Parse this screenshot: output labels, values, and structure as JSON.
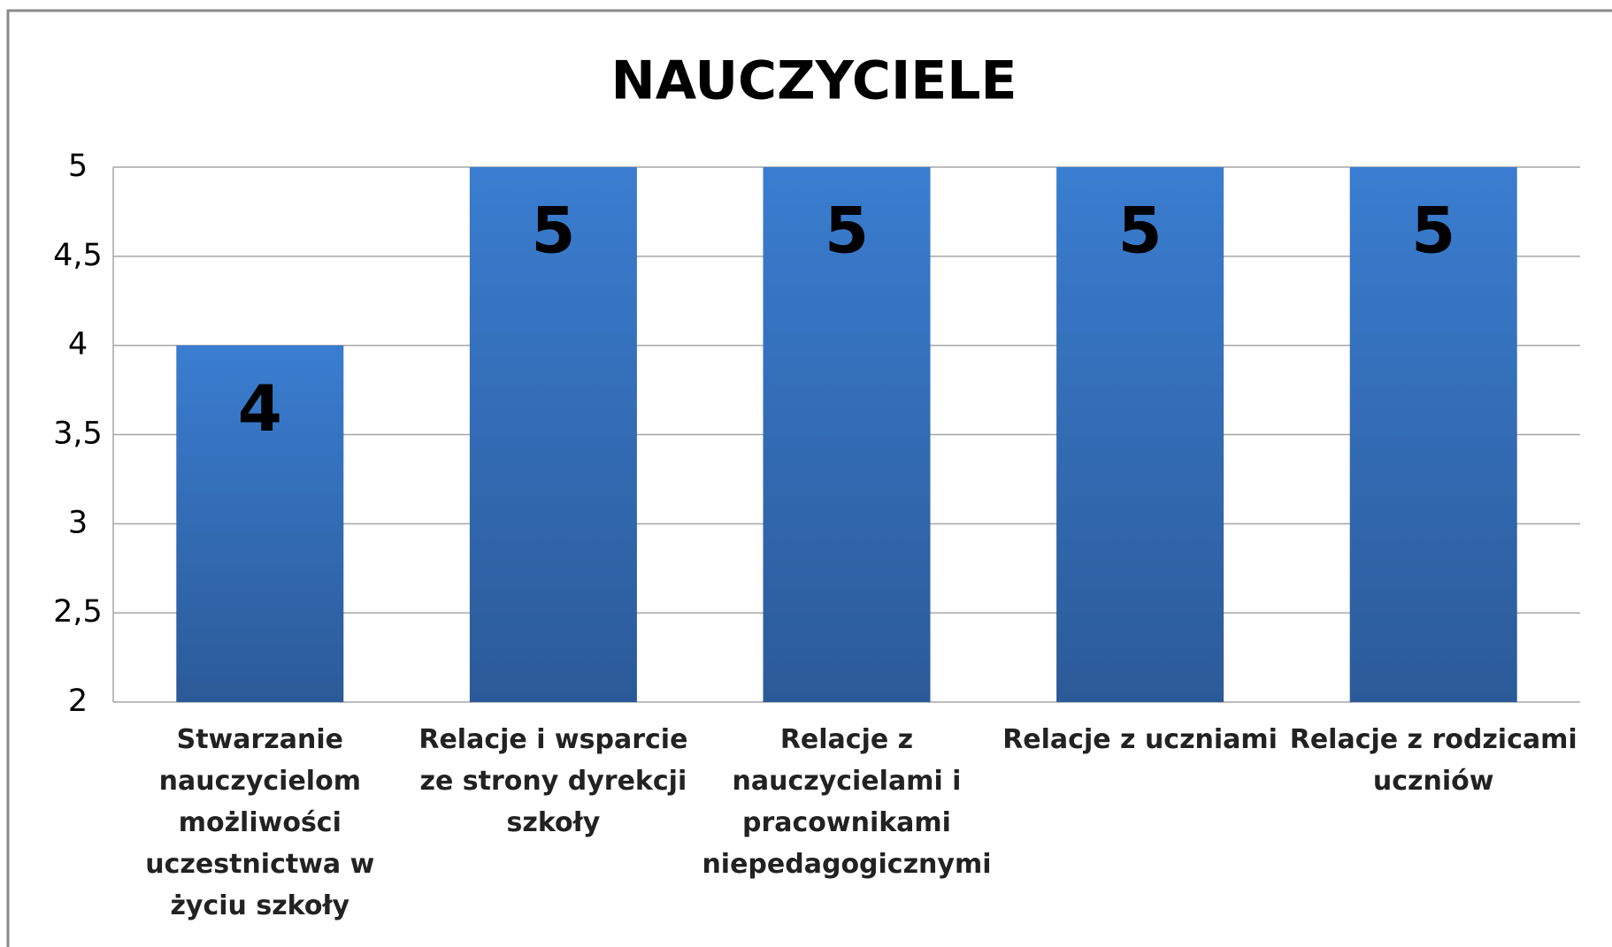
{
  "chart_data": {
    "type": "bar",
    "title": "NAUCZYCIELE",
    "categories": [
      "Stwarzanie nauczycielom możliwości uczestnictwa w życiu szkoły",
      "Relacje i wsparcie ze strony dyrekcji szkoły",
      "Relacje z nauczycielami i pracownikami niepedagogicznymi",
      "Relacje z uczniami",
      "Relacje z rodzicami uczniów"
    ],
    "values": [
      4,
      5,
      5,
      5,
      5
    ],
    "color": "#3a7dd0",
    "ylim": [
      2,
      5
    ],
    "yticks": [
      2,
      {
        "value": 2.5,
        "label": "2,5"
      },
      3,
      {
        "value": 3.5,
        "label": "3,5"
      },
      4,
      {
        "value": 4.5,
        "label": "4,5"
      },
      5
    ],
    "grid": true
  }
}
